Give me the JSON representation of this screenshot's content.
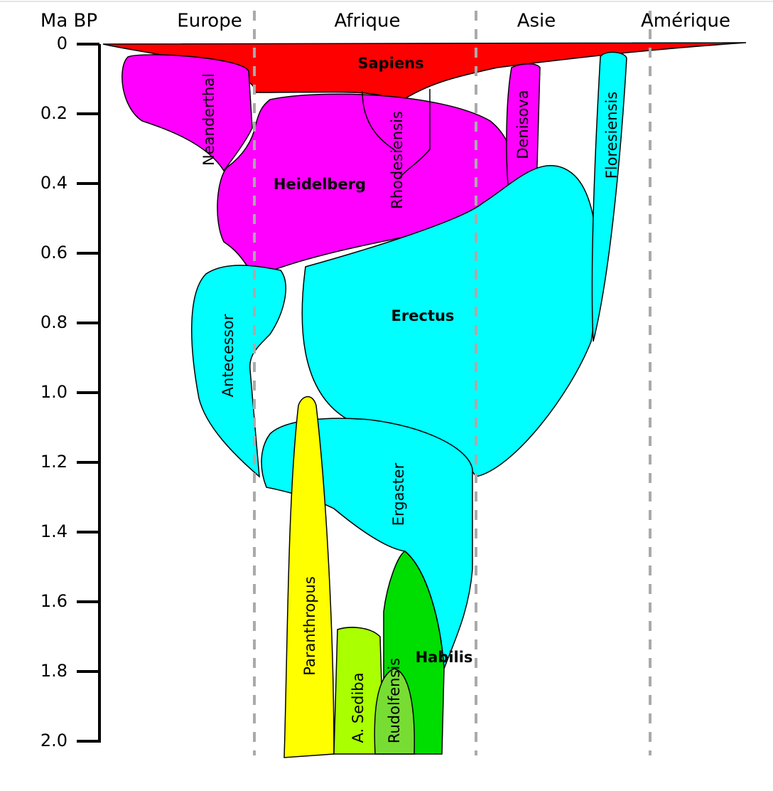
{
  "axis": {
    "title": "Ma BP",
    "ticks": [
      0,
      0.2,
      0.4,
      0.6,
      0.8,
      {
        "value": 1,
        "label": "1.0"
      },
      1.2,
      1.4,
      1.6,
      1.8,
      {
        "value": 2,
        "label": "2.0"
      }
    ]
  },
  "regions": [
    "Europe",
    "Afrique",
    "Asie",
    "Amérique"
  ],
  "species": {
    "sapiens": "Sapiens",
    "neanderthal": "Neanderthal",
    "heidelberg": "Heidelberg",
    "rhodesiensis": "Rhodesiensis",
    "denisova": "Denisova",
    "floresiensis": "Floresiensis",
    "antecessor": "Antecessor",
    "erectus": "Erectus",
    "ergaster": "Ergaster",
    "paranthropus": "Paranthropus",
    "sediba": "A. Sediba",
    "rudolfensis": "Rudolfensis",
    "habilis": "Habilis"
  }
}
